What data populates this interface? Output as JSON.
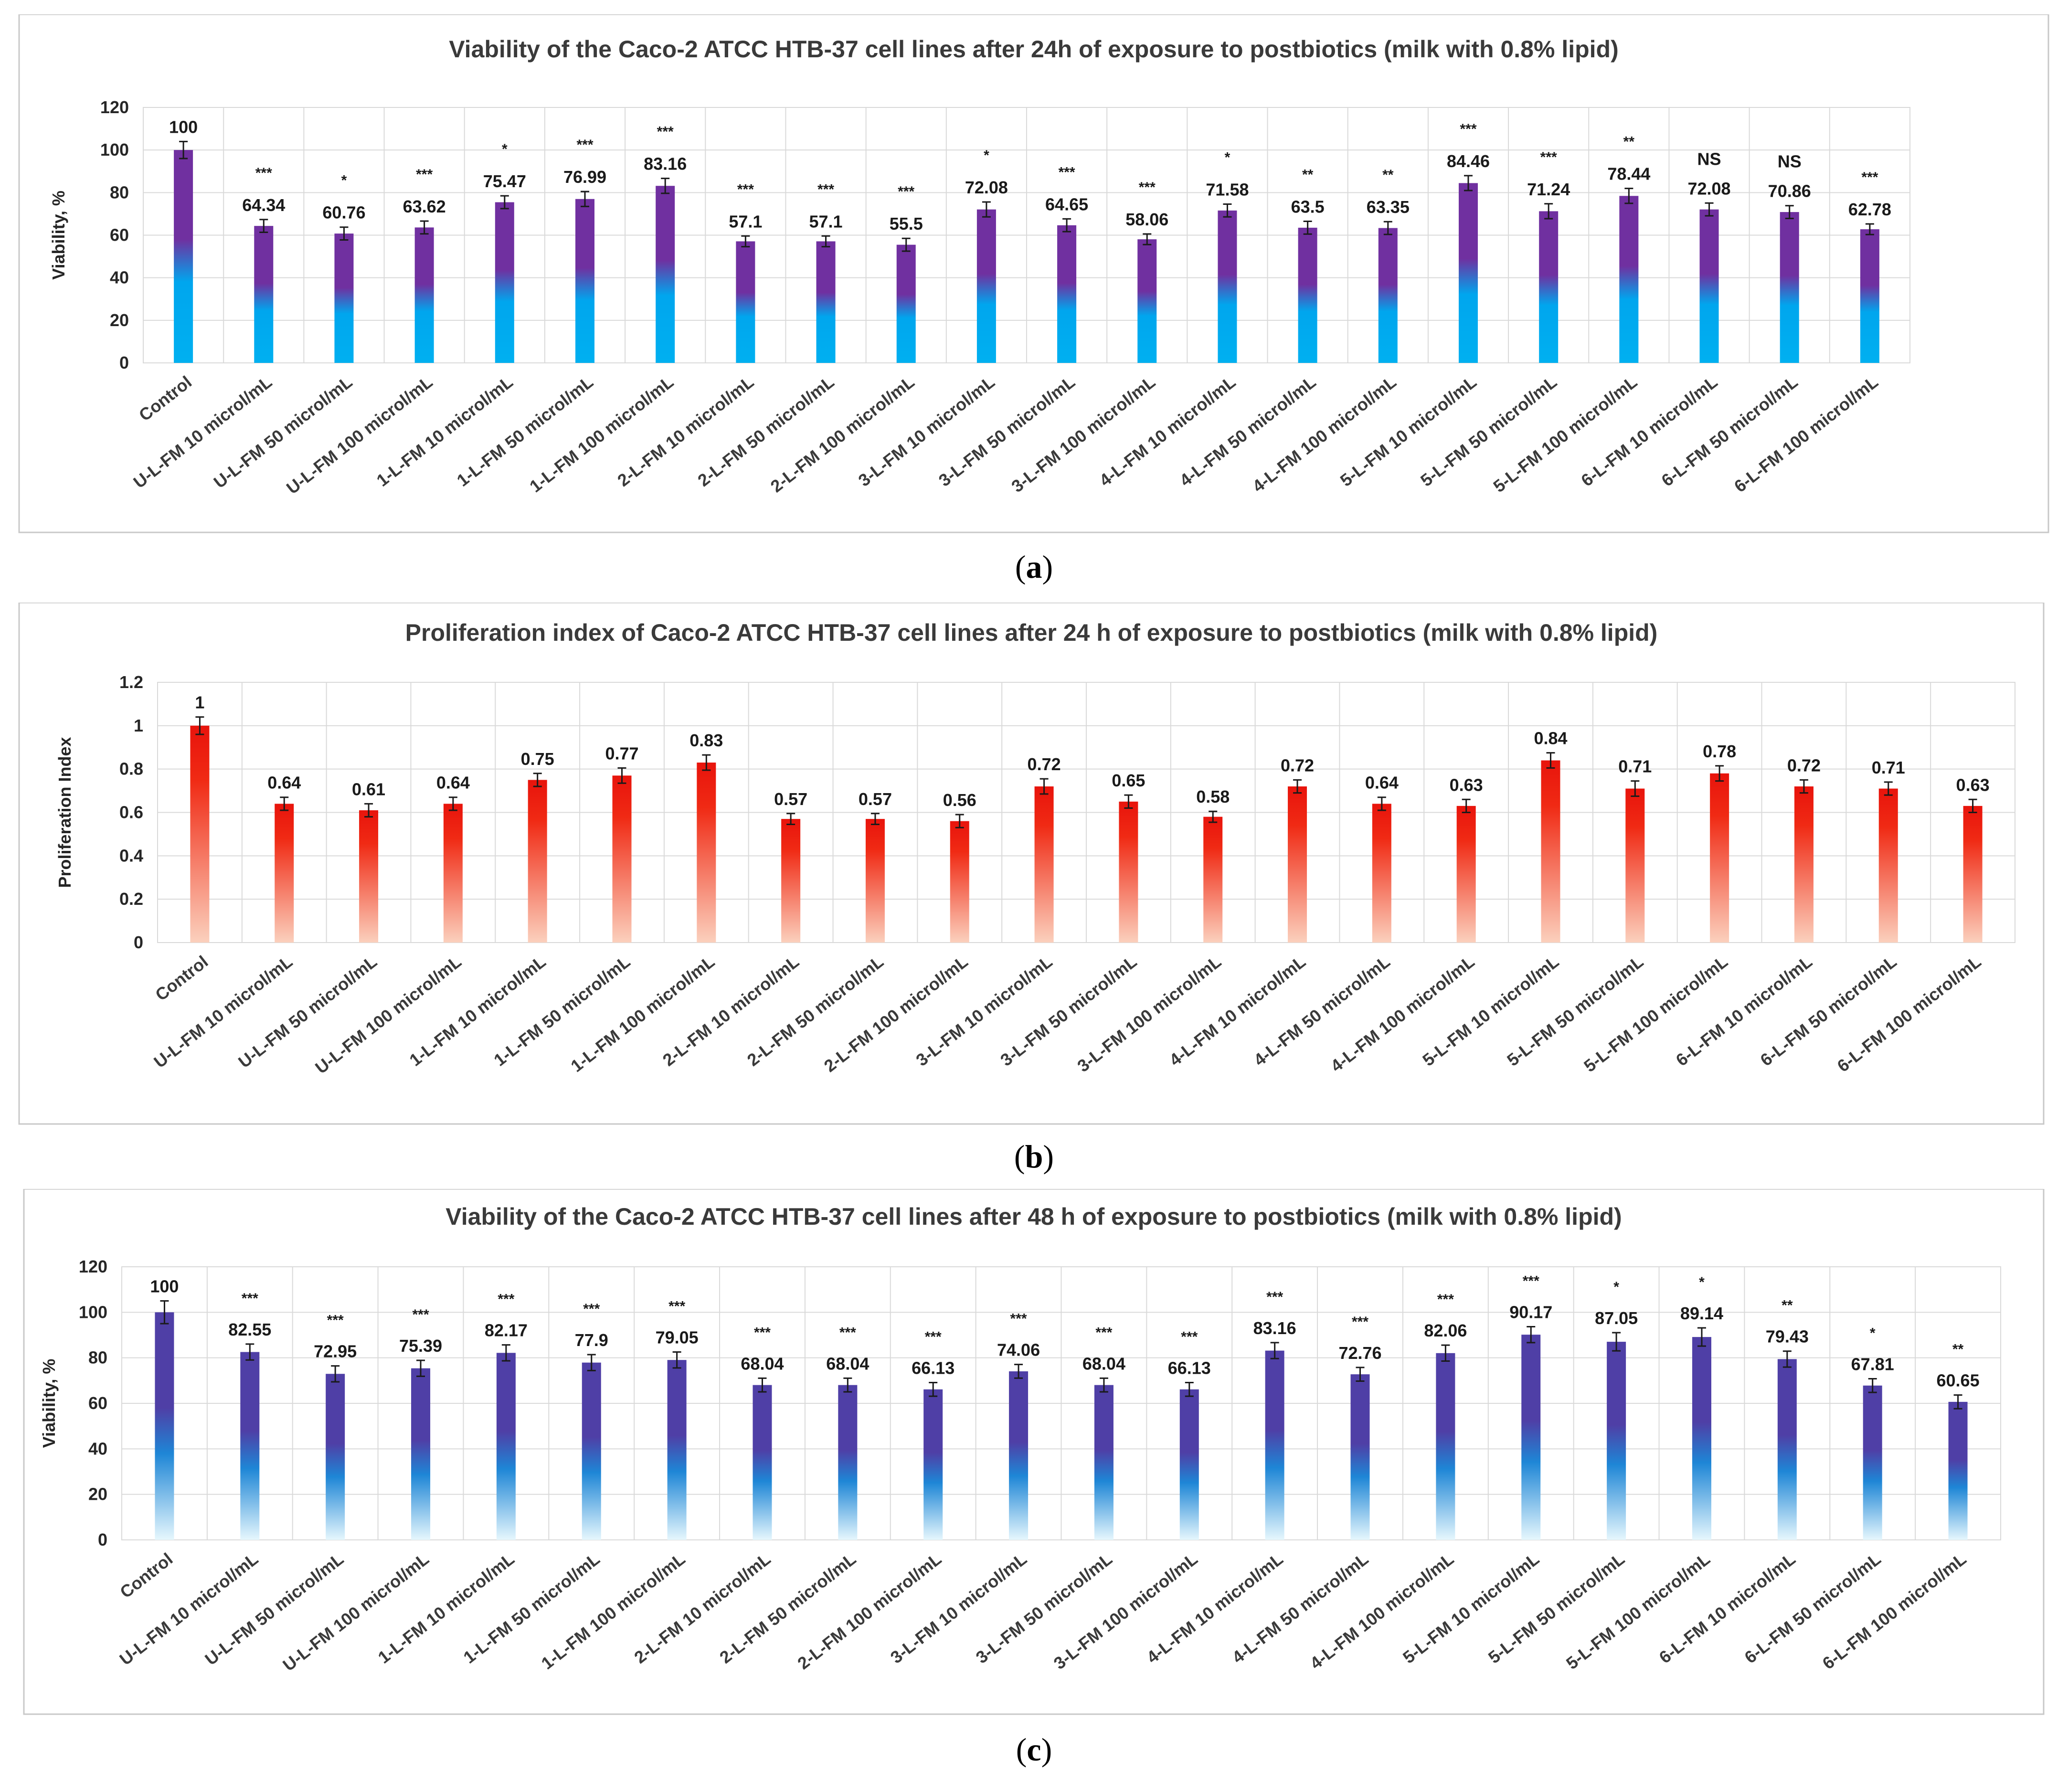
{
  "captions": {
    "a": {
      "open": "(",
      "letter": "a",
      "close": ")"
    },
    "b": {
      "open": "(",
      "letter": "b",
      "close": ")"
    },
    "c": {
      "open": "(",
      "letter": "c",
      "close": ")"
    }
  },
  "chart_data": [
    {
      "id": "a",
      "type": "bar",
      "title": "Viability of the Caco-2  ATCC HTB-37 cell lines after 24h of exposure to postbiotics (milk with 0.8% lipid)",
      "xlabel": "",
      "ylabel": "Viability, %",
      "ylim": [
        0,
        120
      ],
      "yticks": [
        0,
        20,
        40,
        60,
        80,
        100,
        120
      ],
      "ytick_labels": [
        "0",
        "20",
        "40",
        "60",
        "80",
        "100",
        "120"
      ],
      "grid": true,
      "bar_colors": {
        "top": "#7030a0",
        "bottom": "#00b0f0"
      },
      "categories": [
        "Control",
        "U-L-FM 10 microl/mL",
        "U-L-FM 50 microl/mL",
        "U-L-FM 100 microl/mL",
        "1-L-FM 10 microl/mL",
        "1-L-FM 50 microl/mL",
        "1-L-FM 100 microl/mL",
        "2-L-FM 10 microl/mL",
        "2-L-FM 50 microl/mL",
        "2-L-FM 100 microl/mL",
        "3-L-FM 10 microl/mL",
        "3-L-FM 50 microl/mL",
        "3-L-FM 100 microl/mL",
        "4-L-FM 10 microl/mL",
        "4-L-FM 50 microl/mL",
        "4-L-FM 100 microl/mL",
        "5-L-FM 10 microl/mL",
        "5-L-FM 50 microl/mL",
        "5-L-FM 100 microl/mL",
        "6-L-FM 10 microl/mL",
        "6-L-FM 50 microl/mL",
        "6-L-FM 100 microl/mL"
      ],
      "values": [
        100,
        64.34,
        60.76,
        63.62,
        75.47,
        76.99,
        83.16,
        57.1,
        57.1,
        55.5,
        72.08,
        64.65,
        58.06,
        71.58,
        63.5,
        63.35,
        84.46,
        71.24,
        78.44,
        72.08,
        70.86,
        62.78
      ],
      "value_labels": [
        "100",
        "64.34",
        "60.76",
        "63.62",
        "75.47",
        "76.99",
        "83.16",
        "57.1",
        "57.1",
        "55.5",
        "72.08",
        "64.65",
        "58.06",
        "71.58",
        "63.5",
        "63.35",
        "84.46",
        "71.24",
        "78.44",
        "72.08",
        "70.86",
        "62.78"
      ],
      "errors": [
        4,
        3,
        3,
        3,
        3,
        3.5,
        3.5,
        2.5,
        2.5,
        3,
        3.5,
        3,
        2.5,
        3,
        3,
        3,
        3.5,
        3.5,
        3.5,
        3,
        3,
        2.5
      ],
      "significance": [
        "",
        "***",
        "*",
        "***",
        "*",
        "***",
        "***",
        "***",
        "***",
        "***",
        "*",
        "***",
        "***",
        "*",
        "**",
        "**",
        "***",
        "***",
        "**",
        "NS",
        "NS",
        "***"
      ]
    },
    {
      "id": "b",
      "type": "bar",
      "title": "Proliferation index of Caco-2 ATCC HTB-37 cell lines after 24 h of exposure to postbiotics (milk with 0.8% lipid)",
      "xlabel": "",
      "ylabel": "Proliferation Index",
      "ylim": [
        0,
        1.2
      ],
      "yticks": [
        0,
        0.2,
        0.4,
        0.6,
        0.8,
        1,
        1.2
      ],
      "ytick_labels": [
        "0",
        "0.2",
        "0.4",
        "0.6",
        "0.8",
        "1",
        "1.2"
      ],
      "grid": true,
      "bar_colors": {
        "top": "#e8140c",
        "bottom": "#fbd0bd"
      },
      "categories": [
        "Control",
        "U-L-FM 10 microl/mL",
        "U-L-FM 50 microl/mL",
        "U-L-FM 100 microl/mL",
        "1-L-FM 10 microl/mL",
        "1-L-FM 50 microl/mL",
        "1-L-FM 100 microl/mL",
        "2-L-FM 10 microl/mL",
        "2-L-FM 50 microl/mL",
        "2-L-FM 100 microl/mL",
        "3-L-FM 10 microl/mL",
        "3-L-FM 50 microl/mL",
        "3-L-FM 100 microl/mL",
        "4-L-FM 10 microl/mL",
        "4-L-FM 50 microl/mL",
        "4-L-FM 100 microl/mL",
        "5-L-FM 10 microl/mL",
        "5-L-FM 50 microl/mL",
        "5-L-FM 100 microl/mL",
        "6-L-FM 10 microl/mL",
        "6-L-FM 50 microl/mL",
        "6-L-FM 100 microl/mL"
      ],
      "values": [
        1,
        0.64,
        0.61,
        0.64,
        0.75,
        0.77,
        0.83,
        0.57,
        0.57,
        0.56,
        0.72,
        0.65,
        0.58,
        0.72,
        0.64,
        0.63,
        0.84,
        0.71,
        0.78,
        0.72,
        0.71,
        0.63
      ],
      "value_labels": [
        "1",
        "0.64",
        "0.61",
        "0.64",
        "0.75",
        "0.77",
        "0.83",
        "0.57",
        "0.57",
        "0.56",
        "0.72",
        "0.65",
        "0.58",
        "0.72",
        "0.64",
        "0.63",
        "0.84",
        "0.71",
        "0.78",
        "0.72",
        "0.71",
        "0.63"
      ],
      "errors": [
        0.04,
        0.03,
        0.03,
        0.03,
        0.03,
        0.035,
        0.035,
        0.025,
        0.025,
        0.03,
        0.035,
        0.03,
        0.025,
        0.03,
        0.03,
        0.03,
        0.035,
        0.035,
        0.035,
        0.03,
        0.03,
        0.03
      ],
      "significance": []
    },
    {
      "id": "c",
      "type": "bar",
      "title": "Viability of the Caco-2  ATCC HTB-37 cell lines after 48 h of exposure to postbiotics (milk with 0.8% lipid)",
      "xlabel": "",
      "ylabel": "Viability, %",
      "ylim": [
        0,
        120
      ],
      "yticks": [
        0,
        20,
        40,
        60,
        80,
        100,
        120
      ],
      "ytick_labels": [
        "0",
        "20",
        "40",
        "60",
        "80",
        "100",
        "120"
      ],
      "grid": true,
      "bar_colors": {
        "top": "#4f3fa6",
        "bottom": "#e6f7fd"
      },
      "categories": [
        "Control",
        "U-L-FM 10 microl/mL",
        "U-L-FM 50 microl/mL",
        "U-L-FM 100 microl/mL",
        "1-L-FM 10 microl/mL",
        "1-L-FM 50 microl/mL",
        "1-L-FM 100 microl/mL",
        "2-L-FM 10 microl/mL",
        "2-L-FM 50 microl/mL",
        "2-L-FM 100 microl/mL",
        "3-L-FM 10 microl/mL",
        "3-L-FM 50 microl/mL",
        "3-L-FM 100 microl/mL",
        "4-L-FM 10 microl/mL",
        "4-L-FM 50 microl/mL",
        "4-L-FM 100 microl/mL",
        "5-L-FM 10 microl/mL",
        "5-L-FM 50 microl/mL",
        "5-L-FM 100 microl/mL",
        "6-L-FM 10 microl/mL",
        "6-L-FM 50 microl/mL",
        "6-L-FM 100 microl/mL"
      ],
      "values": [
        100,
        82.55,
        72.95,
        75.39,
        82.17,
        77.9,
        79.05,
        68.04,
        68.04,
        66.13,
        74.06,
        68.04,
        66.13,
        83.16,
        72.76,
        82.06,
        90.17,
        87.05,
        89.14,
        79.43,
        67.81,
        60.65
      ],
      "value_labels": [
        "100",
        "82.55",
        "72.95",
        "75.39",
        "82.17",
        "77.9",
        "79.05",
        "68.04",
        "68.04",
        "66.13",
        "74.06",
        "68.04",
        "66.13",
        "83.16",
        "72.76",
        "82.06",
        "90.17",
        "87.05",
        "89.14",
        "79.43",
        "67.81",
        "60.65"
      ],
      "errors": [
        5,
        3.5,
        3.5,
        3.5,
        3.5,
        3.5,
        3.5,
        3,
        3,
        3,
        3,
        3,
        3,
        3.5,
        3,
        3.5,
        3.5,
        4,
        4,
        3.5,
        3,
        3
      ],
      "significance": [
        "",
        "***",
        "***",
        "***",
        "***",
        "***",
        "***",
        "***",
        "***",
        "***",
        "***",
        "***",
        "***",
        "***",
        "***",
        "***",
        "***",
        "*",
        "*",
        "**",
        "*",
        "**"
      ]
    }
  ]
}
